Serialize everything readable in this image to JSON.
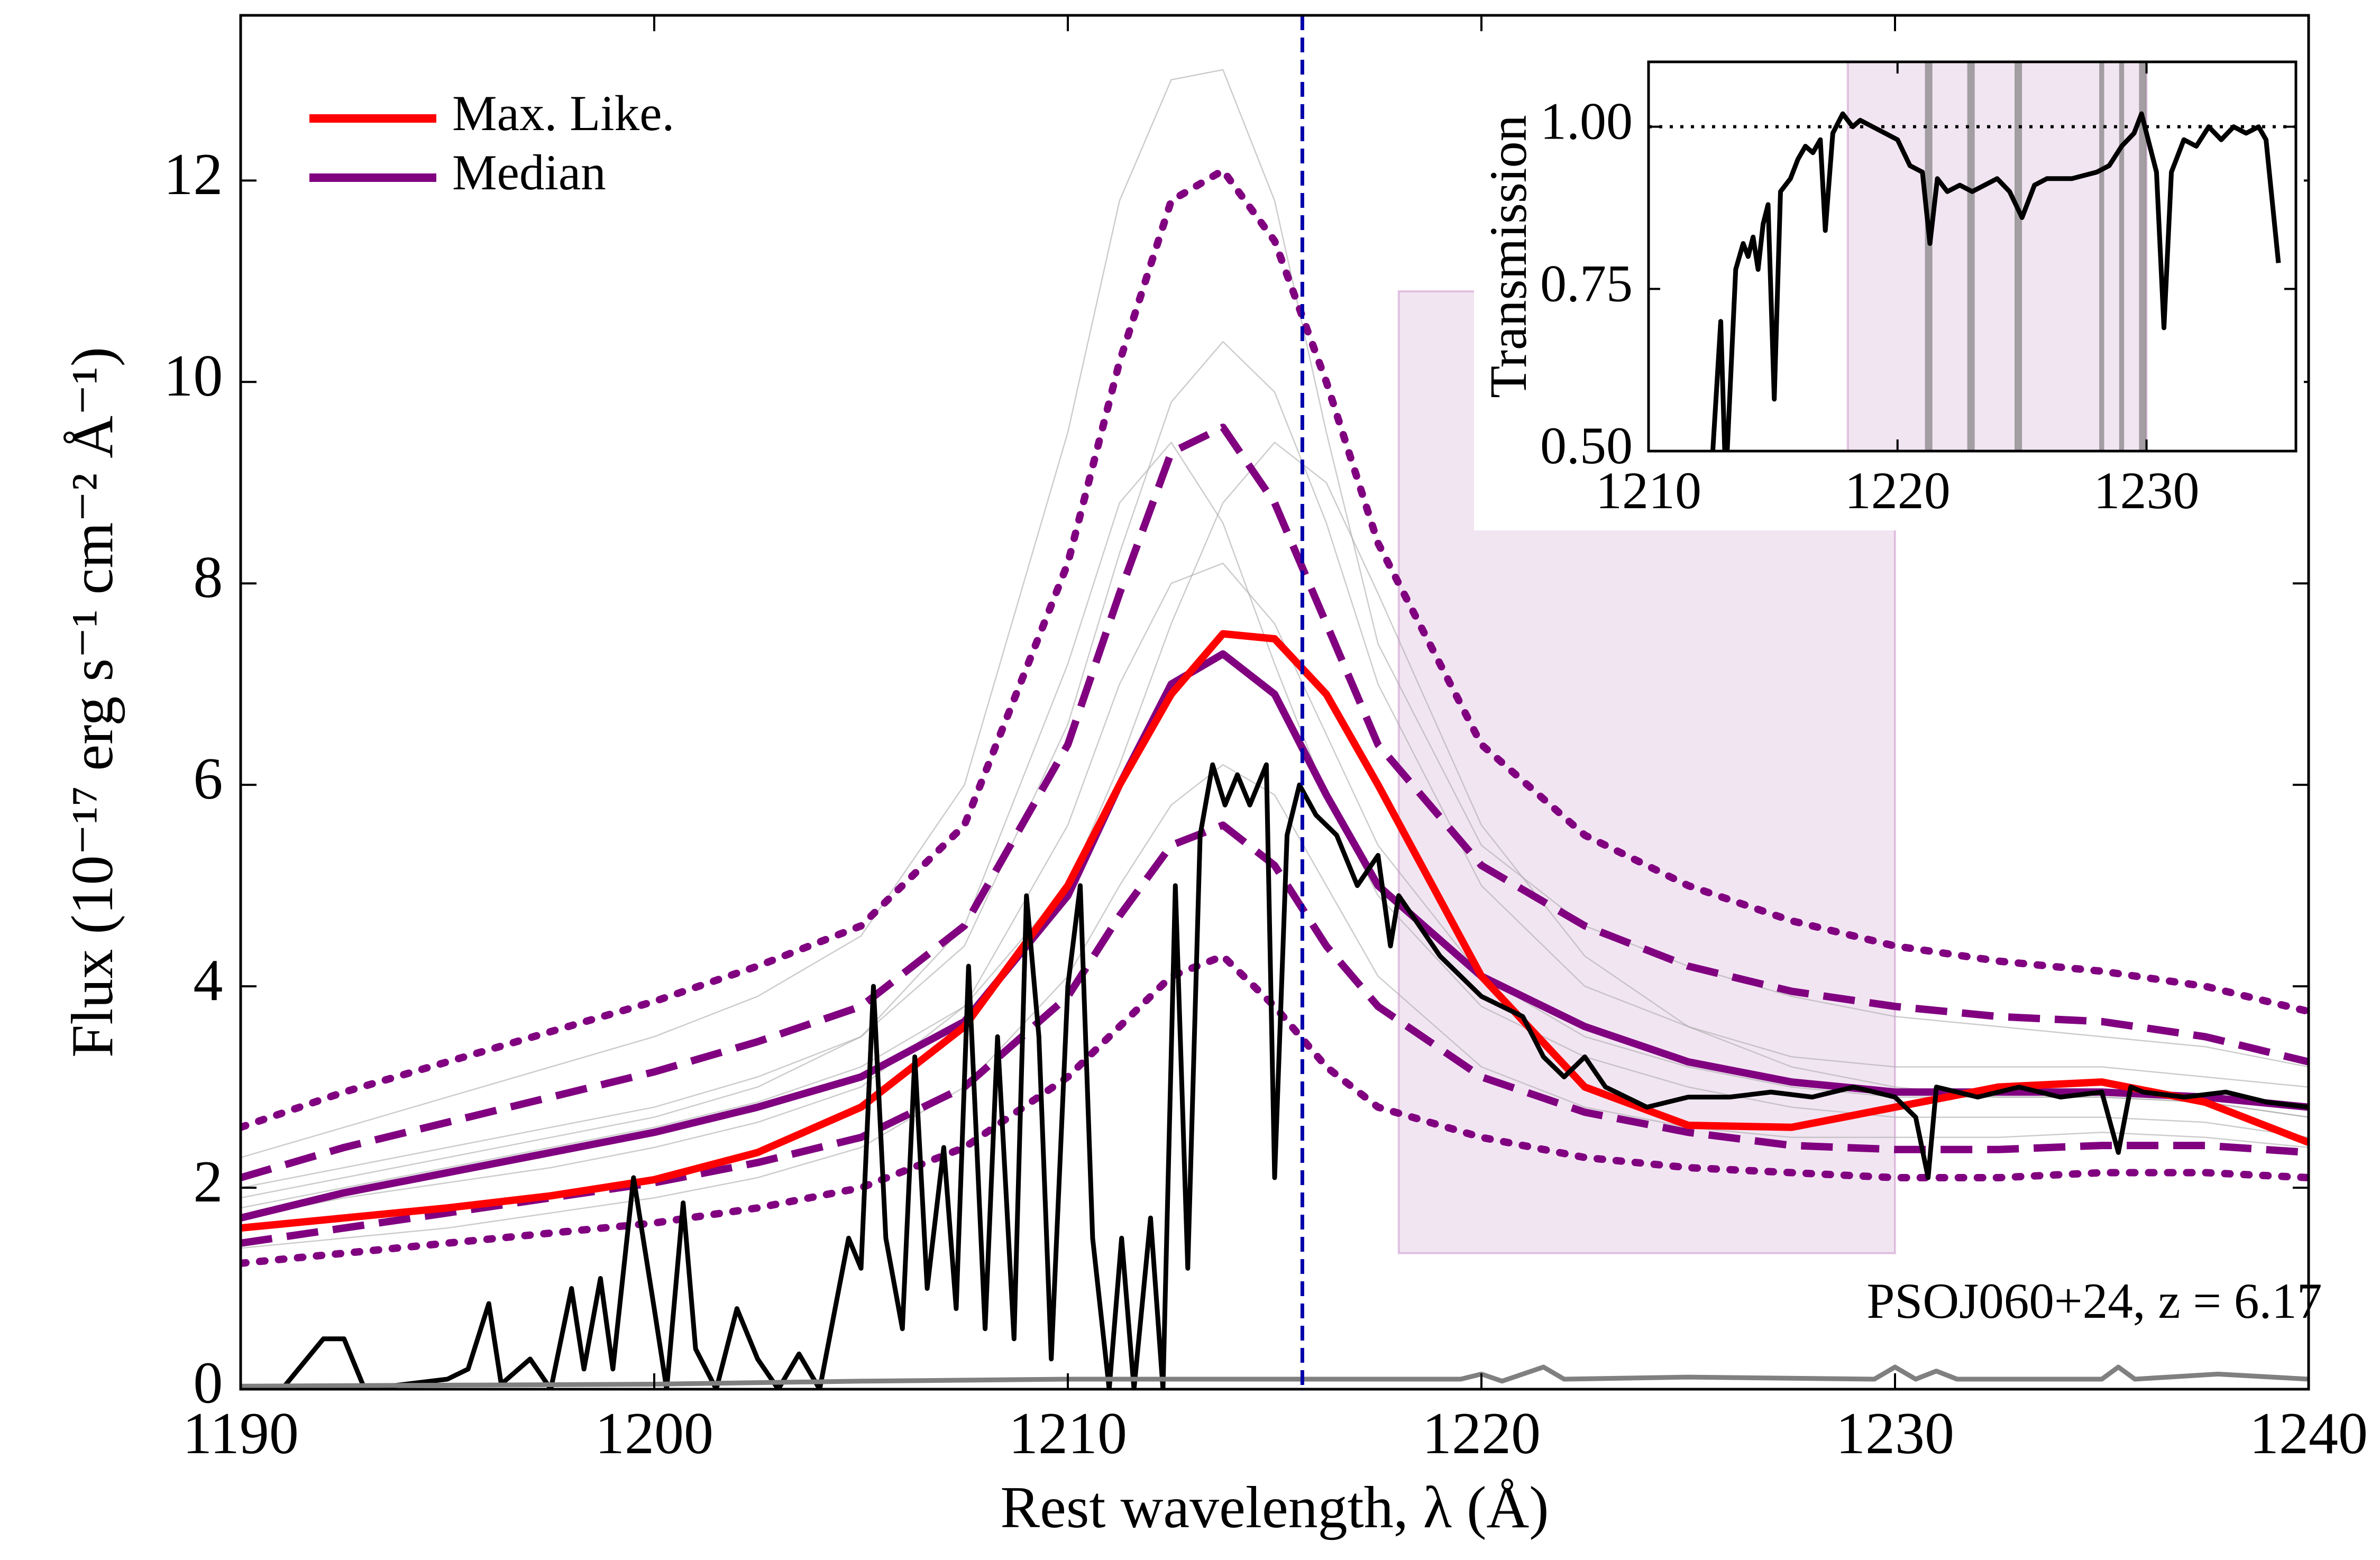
{
  "chart_data": [
    {
      "type": "line",
      "xlabel": "Rest wavelength, λ (Å)",
      "ylabel": "Flux (10⁻¹⁷ erg s⁻¹ cm⁻² Å⁻¹)",
      "annotation": "PSOJ060+24, z = 6.17",
      "xlim": [
        1190,
        1240
      ],
      "ylim": [
        0,
        13.64
      ],
      "xticks": [
        1190,
        1200,
        1210,
        1220,
        1230,
        1240
      ],
      "yticks": [
        0,
        2,
        4,
        6,
        8,
        10,
        12
      ],
      "legend": "upper left",
      "vline": {
        "x": 1215.67,
        "color": "#0000aa"
      },
      "shaded": {
        "x": [
          1218,
          1230
        ],
        "y": [
          1.35,
          10.9
        ],
        "color": "#800080"
      },
      "x": [
        1190,
        1192.5,
        1195,
        1197.5,
        1200,
        1202.5,
        1205,
        1207.5,
        1210,
        1211.25,
        1212.5,
        1213.75,
        1215,
        1216.25,
        1217.5,
        1220,
        1222.5,
        1225,
        1227.5,
        1230,
        1232.5,
        1235,
        1237.5,
        1240
      ],
      "series": [
        {
          "color": "#aaaaaa",
          "dash": "solid",
          "values": [
            2.3,
            2.6,
            2.9,
            3.2,
            3.5,
            3.9,
            4.5,
            6.0,
            9.5,
            11.8,
            13.0,
            13.1,
            11.8,
            9.5,
            7.4,
            5.4,
            4.6,
            4.2,
            3.9,
            3.7,
            3.6,
            3.5,
            3.4,
            3.2
          ]
        },
        {
          "color": "#aaaaaa",
          "dash": "solid",
          "values": [
            2.0,
            2.2,
            2.4,
            2.6,
            2.8,
            3.1,
            3.5,
            4.4,
            6.6,
            8.3,
            9.8,
            10.4,
            9.9,
            8.6,
            7.0,
            5.0,
            4.0,
            3.6,
            3.3,
            3.2,
            3.2,
            3.2,
            3.1,
            3.0
          ]
        },
        {
          "color": "#aaaaaa",
          "dash": "solid",
          "values": [
            1.4,
            1.5,
            1.6,
            1.75,
            1.9,
            2.1,
            2.4,
            3.0,
            4.1,
            5.0,
            5.8,
            6.2,
            5.9,
            5.0,
            4.1,
            3.2,
            2.8,
            2.6,
            2.5,
            2.5,
            2.5,
            2.55,
            2.5,
            2.4
          ]
        },
        {
          "color": "#aaaaaa",
          "dash": "solid",
          "values": [
            1.8,
            2.0,
            2.2,
            2.4,
            2.6,
            2.85,
            3.2,
            3.8,
            5.0,
            6.2,
            7.6,
            8.8,
            9.4,
            9.0,
            7.9,
            5.6,
            4.3,
            3.6,
            3.2,
            3.0,
            2.9,
            2.9,
            2.85,
            2.7
          ]
        },
        {
          "color": "#aaaaaa",
          "dash": "solid",
          "values": [
            1.9,
            2.1,
            2.3,
            2.5,
            2.7,
            3.0,
            3.5,
            4.6,
            7.2,
            8.8,
            9.4,
            8.6,
            7.2,
            5.9,
            4.9,
            3.8,
            3.3,
            3.0,
            2.8,
            2.7,
            2.7,
            2.7,
            2.65,
            2.5
          ]
        },
        {
          "color": "#aaaaaa",
          "dash": "solid",
          "values": [
            1.7,
            1.9,
            2.05,
            2.2,
            2.4,
            2.65,
            3.0,
            3.8,
            5.6,
            7.0,
            8.0,
            8.2,
            7.6,
            6.5,
            5.4,
            4.1,
            3.5,
            3.2,
            3.0,
            2.9,
            2.9,
            2.9,
            2.85,
            2.7
          ]
        },
        {
          "color": "#800080",
          "dash": "dotted",
          "values": [
            2.6,
            2.95,
            3.25,
            3.55,
            3.85,
            4.2,
            4.6,
            5.6,
            8.2,
            10.2,
            11.8,
            12.1,
            11.4,
            10.0,
            8.4,
            6.4,
            5.5,
            5.0,
            4.65,
            4.4,
            4.25,
            4.15,
            4.0,
            3.75
          ]
        },
        {
          "color": "#800080",
          "dash": "dotted",
          "values": [
            1.25,
            1.35,
            1.45,
            1.55,
            1.65,
            1.8,
            2.0,
            2.4,
            3.1,
            3.6,
            4.1,
            4.3,
            3.8,
            3.2,
            2.8,
            2.5,
            2.3,
            2.2,
            2.15,
            2.1,
            2.1,
            2.15,
            2.15,
            2.1
          ]
        },
        {
          "color": "#800080",
          "dash": "dashed",
          "values": [
            2.1,
            2.4,
            2.65,
            2.9,
            3.15,
            3.45,
            3.8,
            4.6,
            6.4,
            7.9,
            9.3,
            9.55,
            8.8,
            7.6,
            6.4,
            5.2,
            4.6,
            4.2,
            3.95,
            3.8,
            3.7,
            3.65,
            3.5,
            3.25
          ]
        },
        {
          "color": "#800080",
          "dash": "dashed",
          "values": [
            1.45,
            1.6,
            1.75,
            1.9,
            2.05,
            2.25,
            2.5,
            3.0,
            3.9,
            4.7,
            5.4,
            5.6,
            5.2,
            4.4,
            3.8,
            3.1,
            2.75,
            2.55,
            2.42,
            2.38,
            2.38,
            2.42,
            2.42,
            2.35
          ]
        },
        {
          "name": "Median",
          "color": "#800080",
          "dash": "solid",
          "values": [
            1.7,
            1.95,
            2.15,
            2.35,
            2.55,
            2.8,
            3.1,
            3.65,
            4.9,
            6.0,
            7.0,
            7.3,
            6.9,
            5.9,
            5.0,
            4.1,
            3.6,
            3.25,
            3.05,
            2.95,
            2.95,
            2.95,
            2.9,
            2.8
          ]
        },
        {
          "name": "Max. Like.",
          "color": "#ff0000",
          "dash": "solid",
          "values": [
            1.6,
            1.7,
            1.8,
            1.92,
            2.08,
            2.35,
            2.8,
            3.6,
            5.0,
            6.0,
            6.9,
            7.5,
            7.45,
            6.9,
            6.0,
            4.1,
            3.0,
            2.62,
            2.6,
            2.8,
            3.0,
            3.05,
            2.85,
            2.45
          ]
        },
        {
          "color": "#000000",
          "dash": "solid",
          "x": [
            1190,
            1191,
            1192,
            1192.5,
            1193,
            1194,
            1195,
            1195.5,
            1196,
            1196.3,
            1197,
            1197.5,
            1198,
            1198.3,
            1198.7,
            1199,
            1199.5,
            1200,
            1200.3,
            1200.7,
            1201,
            1201.5,
            1202,
            1202.5,
            1203,
            1203.5,
            1204,
            1204.7,
            1205,
            1205.3,
            1205.6,
            1206,
            1206.3,
            1206.6,
            1207,
            1207.3,
            1207.6,
            1208,
            1208.3,
            1208.7,
            1209,
            1209.3,
            1209.6,
            1210,
            1210.3,
            1210.6,
            1211,
            1211.3,
            1211.6,
            1212,
            1212.3,
            1212.6,
            1212.9,
            1213.2,
            1213.5,
            1213.8,
            1214.1,
            1214.4,
            1214.8,
            1215,
            1215.3,
            1215.6,
            1216,
            1216.5,
            1217,
            1217.5,
            1217.8,
            1218,
            1219,
            1220,
            1221,
            1221.5,
            1222,
            1222.5,
            1223,
            1224,
            1225,
            1226,
            1227,
            1228,
            1229,
            1230,
            1230.5,
            1230.8,
            1231,
            1232,
            1233,
            1234,
            1235,
            1235.4,
            1235.7,
            1236,
            1237,
            1238,
            1239,
            1240
          ],
          "values": [
            0,
            0,
            0.5,
            0.5,
            0,
            0.05,
            0.1,
            0.2,
            0.85,
            0.05,
            0.3,
            0,
            1.0,
            0.2,
            1.1,
            0.2,
            2.1,
            0.8,
            0,
            1.85,
            0.4,
            0,
            0.8,
            0.3,
            0,
            0.35,
            0,
            1.5,
            1.2,
            4.0,
            1.5,
            0.6,
            3.3,
            1.0,
            2.4,
            0.8,
            4.2,
            0.6,
            3.5,
            0.5,
            4.9,
            3.5,
            0.3,
            4.0,
            5.0,
            1.5,
            0,
            1.5,
            0,
            1.7,
            0,
            5.0,
            1.2,
            5.5,
            6.2,
            5.8,
            6.1,
            5.8,
            6.2,
            2.1,
            5.5,
            6.0,
            5.7,
            5.5,
            5.0,
            5.3,
            4.4,
            4.9,
            4.3,
            3.9,
            3.7,
            3.3,
            3.1,
            3.3,
            3.0,
            2.8,
            2.9,
            2.9,
            2.95,
            2.9,
            3.0,
            2.9,
            2.7,
            2.1,
            3.0,
            2.9,
            3.0,
            2.9,
            2.95,
            2.35,
            3.0,
            2.95,
            2.9,
            2.95,
            2.85,
            2.8
          ]
        },
        {
          "color": "#808080",
          "dash": "solid",
          "x": [
            1190,
            1200,
            1205,
            1210,
            1215,
            1219.5,
            1220,
            1220.5,
            1221.5,
            1222,
            1225,
            1229.5,
            1230,
            1230.5,
            1231,
            1231.5,
            1235,
            1235.4,
            1235.8,
            1237.8,
            1240
          ],
          "values": [
            0.03,
            0.05,
            0.08,
            0.1,
            0.1,
            0.1,
            0.15,
            0.08,
            0.22,
            0.1,
            0.12,
            0.1,
            0.22,
            0.1,
            0.18,
            0.1,
            0.1,
            0.22,
            0.1,
            0.15,
            0.1
          ]
        }
      ]
    },
    {
      "type": "line",
      "ylabel": "Transmission",
      "xlim": [
        1210,
        1236
      ],
      "ylim": [
        0.5,
        1.1
      ],
      "xticks": [
        1210,
        1220,
        1230
      ],
      "yticks": [
        {
          "value": 0.5,
          "label": "0.50"
        },
        {
          "value": 0.75,
          "label": "0.75"
        },
        {
          "value": 1.0,
          "label": "1.00"
        }
      ],
      "hline": 1.0,
      "shaded": {
        "x": [
          1218,
          1230
        ],
        "color": "#800080"
      },
      "bands": [
        [
          1221.1,
          1221.4
        ],
        [
          1222.8,
          1223.1
        ],
        [
          1224.7,
          1225.0
        ],
        [
          1228.1,
          1228.3
        ],
        [
          1228.9,
          1229.1
        ],
        [
          1229.7,
          1230.0
        ]
      ],
      "series": [
        {
          "color": "#000000",
          "dash": "solid",
          "x": [
            1212.5,
            1212.9,
            1213.1,
            1213.5,
            1213.8,
            1214,
            1214.2,
            1214.4,
            1214.6,
            1214.8,
            1215.05,
            1215.3,
            1215.7,
            1216,
            1216.3,
            1216.6,
            1216.9,
            1217.1,
            1217.4,
            1217.8,
            1218.2,
            1218.5,
            1219,
            1219.5,
            1220,
            1220.5,
            1221,
            1221.3,
            1221.6,
            1222,
            1222.5,
            1223,
            1224,
            1224.5,
            1225,
            1225.5,
            1226,
            1227,
            1228,
            1228.5,
            1229,
            1229.5,
            1229.8,
            1230,
            1230.4,
            1230.7,
            1231,
            1231.5,
            1232,
            1232.5,
            1233,
            1233.5,
            1234,
            1234.5,
            1234.8,
            1235.3
          ],
          "values": [
            0.45,
            0.7,
            0.45,
            0.78,
            0.82,
            0.8,
            0.83,
            0.78,
            0.85,
            0.88,
            0.58,
            0.9,
            0.92,
            0.95,
            0.97,
            0.96,
            0.98,
            0.84,
            0.99,
            1.02,
            1.0,
            1.01,
            1.0,
            0.99,
            0.98,
            0.94,
            0.93,
            0.82,
            0.92,
            0.9,
            0.91,
            0.9,
            0.92,
            0.9,
            0.86,
            0.91,
            0.92,
            0.92,
            0.93,
            0.94,
            0.97,
            0.99,
            1.02,
            0.99,
            0.93,
            0.69,
            0.93,
            0.98,
            0.97,
            1.0,
            0.98,
            1.0,
            0.99,
            1.0,
            0.98,
            0.79
          ]
        }
      ]
    }
  ]
}
